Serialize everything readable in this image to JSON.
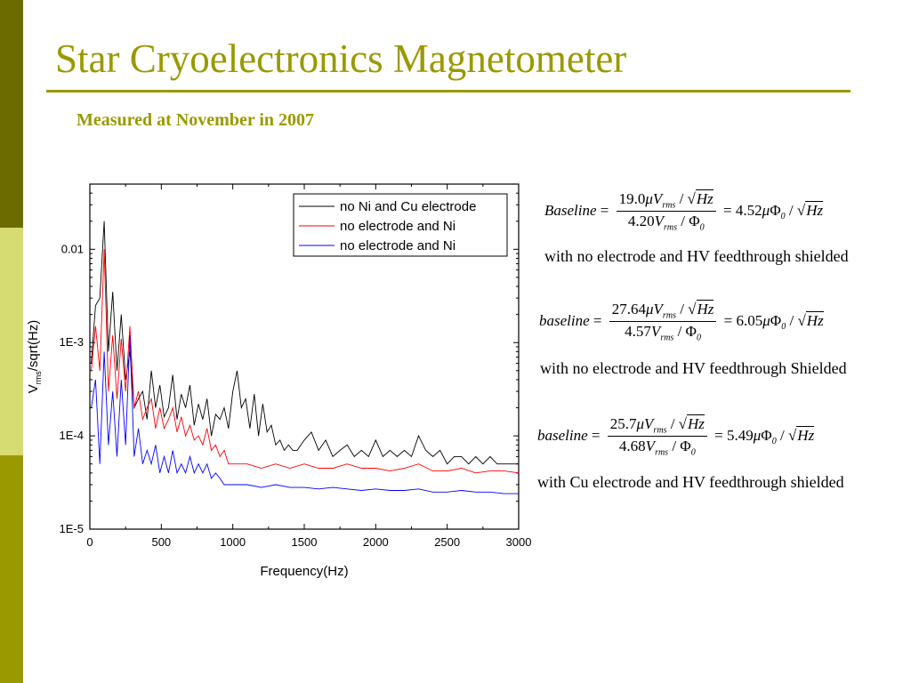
{
  "slide": {
    "title": "Star Cryoelectronics Magnetometer",
    "subtitle": "Measured at November in 2007",
    "colors": {
      "accent": "#999900",
      "sidebar_dark": "#6b6b00",
      "sidebar_light": "#d6db72",
      "sidebar_mid": "#9a9a00"
    }
  },
  "equations": [
    {
      "lhs": "Baseline",
      "num_value": "19.0",
      "den_value": "4.20",
      "result": "4.52",
      "caption": "with no electrode and HV feedthrough shielded"
    },
    {
      "lhs": "baseline",
      "num_value": "27.64",
      "den_value": "4.57",
      "result": "6.05",
      "caption": "with no electrode and HV feedthrough Shielded"
    },
    {
      "lhs": "baseline",
      "num_value": "25.7",
      "den_value": "4.68",
      "result": "5.49",
      "caption": "with Cu electrode and HV feedthrough shielded"
    }
  ],
  "chart_data": {
    "type": "line",
    "title": "",
    "xlabel": "Frequency(Hz)",
    "ylabel": "V_rms/sqrt(Hz)",
    "ylabel_main": "V",
    "ylabel_sub": "rms",
    "ylabel_rest": "/sqrt(Hz)",
    "xlim": [
      0,
      3000
    ],
    "ylim": [
      1e-05,
      0.05
    ],
    "yscale": "log",
    "xticks": [
      0,
      500,
      1000,
      1500,
      2000,
      2500,
      3000
    ],
    "yticks": [
      {
        "value": 1e-05,
        "label": "1E-5"
      },
      {
        "value": 0.0001,
        "label": "1E-4"
      },
      {
        "value": 0.001,
        "label": "1E-3"
      },
      {
        "value": 0.01,
        "label": "0.01"
      }
    ],
    "grid": false,
    "legend_position": "top-right",
    "series": [
      {
        "name": "no Ni and Cu electrode",
        "color": "#000000",
        "x": [
          10,
          40,
          70,
          100,
          130,
          160,
          190,
          220,
          250,
          280,
          310,
          340,
          370,
          400,
          430,
          460,
          490,
          520,
          550,
          580,
          610,
          640,
          670,
          700,
          730,
          760,
          790,
          820,
          850,
          880,
          910,
          940,
          970,
          1000,
          1030,
          1060,
          1090,
          1120,
          1150,
          1180,
          1210,
          1240,
          1270,
          1300,
          1330,
          1360,
          1390,
          1420,
          1450,
          1500,
          1550,
          1600,
          1650,
          1700,
          1750,
          1800,
          1850,
          1900,
          1950,
          2000,
          2050,
          2100,
          2150,
          2200,
          2250,
          2300,
          2350,
          2400,
          2450,
          2500,
          2550,
          2600,
          2650,
          2700,
          2750,
          2800,
          2850,
          2900,
          2950,
          3000
        ],
        "values": [
          0.0006,
          0.0025,
          0.003,
          0.02,
          0.0008,
          0.0035,
          0.0005,
          0.002,
          0.0004,
          0.0008,
          0.0002,
          0.00025,
          0.0003,
          0.00015,
          0.0005,
          0.0002,
          0.00035,
          0.00016,
          0.0002,
          0.00045,
          0.00015,
          0.00028,
          0.0002,
          0.00035,
          0.00013,
          0.00022,
          0.00015,
          0.00025,
          0.0001,
          0.00017,
          0.00015,
          0.0002,
          0.00012,
          0.0003,
          0.0005,
          0.0002,
          0.00025,
          0.00012,
          0.00028,
          0.0001,
          0.00022,
          0.00011,
          0.00013,
          8e-05,
          9e-05,
          7e-05,
          8e-05,
          7e-05,
          7e-05,
          9e-05,
          0.00011,
          7e-05,
          9e-05,
          6e-05,
          7e-05,
          8e-05,
          6e-05,
          7e-05,
          6e-05,
          9e-05,
          6e-05,
          7e-05,
          6e-05,
          7e-05,
          6e-05,
          0.0001,
          7e-05,
          6e-05,
          7e-05,
          5e-05,
          6e-05,
          6e-05,
          5e-05,
          6e-05,
          5e-05,
          6e-05,
          5e-05,
          5e-05,
          5e-05,
          5e-05
        ]
      },
      {
        "name": "no electrode and Ni",
        "color": "#ff0000",
        "x": [
          10,
          40,
          70,
          100,
          130,
          160,
          190,
          220,
          250,
          280,
          310,
          340,
          370,
          400,
          430,
          460,
          490,
          520,
          550,
          580,
          610,
          640,
          670,
          700,
          730,
          760,
          790,
          820,
          850,
          880,
          910,
          940,
          970,
          1000,
          1100,
          1200,
          1300,
          1400,
          1500,
          1600,
          1700,
          1800,
          1900,
          2000,
          2100,
          2200,
          2300,
          2400,
          2500,
          2600,
          2700,
          2800,
          2900,
          3000
        ],
        "values": [
          0.0005,
          0.0015,
          0.0005,
          0.01,
          0.0003,
          0.0012,
          0.00025,
          0.0011,
          0.0003,
          0.0015,
          0.0002,
          0.0003,
          0.00015,
          0.0002,
          0.00025,
          0.00012,
          0.0002,
          0.00012,
          0.00015,
          0.0002,
          0.00011,
          0.00016,
          0.0001,
          0.00013,
          9e-05,
          0.0001,
          8e-05,
          0.00012,
          7e-05,
          8e-05,
          6e-05,
          7e-05,
          5e-05,
          5e-05,
          5e-05,
          4.5e-05,
          5e-05,
          4.5e-05,
          5e-05,
          4.5e-05,
          4.5e-05,
          5e-05,
          4.5e-05,
          4.5e-05,
          4.2e-05,
          4.5e-05,
          5e-05,
          4.2e-05,
          4.2e-05,
          4.5e-05,
          4e-05,
          4.2e-05,
          4.2e-05,
          4e-05
        ]
      },
      {
        "name": "no electrode and Ni",
        "color": "#0000ff",
        "x": [
          10,
          40,
          70,
          100,
          130,
          160,
          190,
          220,
          250,
          280,
          310,
          340,
          370,
          400,
          430,
          460,
          490,
          520,
          550,
          580,
          610,
          640,
          670,
          700,
          730,
          760,
          790,
          820,
          850,
          880,
          910,
          940,
          970,
          1000,
          1100,
          1200,
          1300,
          1400,
          1500,
          1600,
          1700,
          1800,
          1900,
          2000,
          2100,
          2200,
          2300,
          2400,
          2500,
          2600,
          2700,
          2800,
          2900,
          3000
        ],
        "values": [
          0.0002,
          0.0004,
          5e-05,
          0.0008,
          8e-05,
          0.0003,
          6e-05,
          0.0004,
          8e-05,
          0.0012,
          6e-05,
          0.00012,
          5e-05,
          7e-05,
          5e-05,
          8e-05,
          4e-05,
          6e-05,
          4e-05,
          7e-05,
          4e-05,
          5e-05,
          4e-05,
          6e-05,
          4e-05,
          5e-05,
          4e-05,
          5e-05,
          3.5e-05,
          4e-05,
          3.5e-05,
          3e-05,
          3e-05,
          3e-05,
          3e-05,
          2.8e-05,
          3e-05,
          2.8e-05,
          2.8e-05,
          2.7e-05,
          2.8e-05,
          2.7e-05,
          2.6e-05,
          2.7e-05,
          2.6e-05,
          2.6e-05,
          2.7e-05,
          2.5e-05,
          2.5e-05,
          2.6e-05,
          2.5e-05,
          2.5e-05,
          2.4e-05,
          2.4e-05
        ]
      }
    ]
  }
}
